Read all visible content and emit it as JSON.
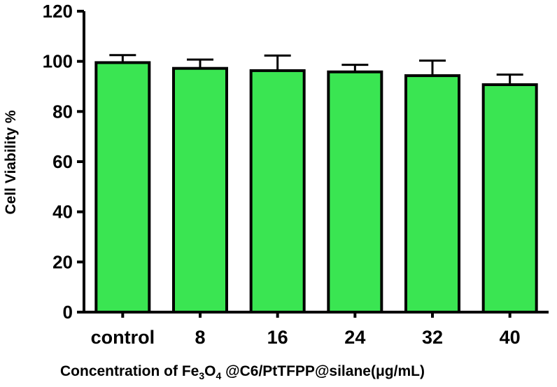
{
  "chart_data": {
    "type": "bar",
    "categories": [
      "control",
      "8",
      "16",
      "24",
      "32",
      "40"
    ],
    "values": [
      99.5,
      97.2,
      96.3,
      95.8,
      94.3,
      90.7
    ],
    "errors": [
      3.0,
      3.5,
      6.0,
      2.8,
      6.0,
      4.0
    ],
    "yticks": [
      "0",
      "20",
      "40",
      "60",
      "80",
      "100",
      "120"
    ],
    "ylim": [
      0,
      120
    ],
    "ylabel": "Cell Viability %",
    "xlabel_parts": {
      "prefix": "Concentration of Fe",
      "sub1": "3",
      "mid": "O",
      "sub2": "4",
      "suffix": " @C6/PtTFPP@silane(μg/mL)"
    },
    "bar_color": "#3ae552",
    "grid": false
  }
}
